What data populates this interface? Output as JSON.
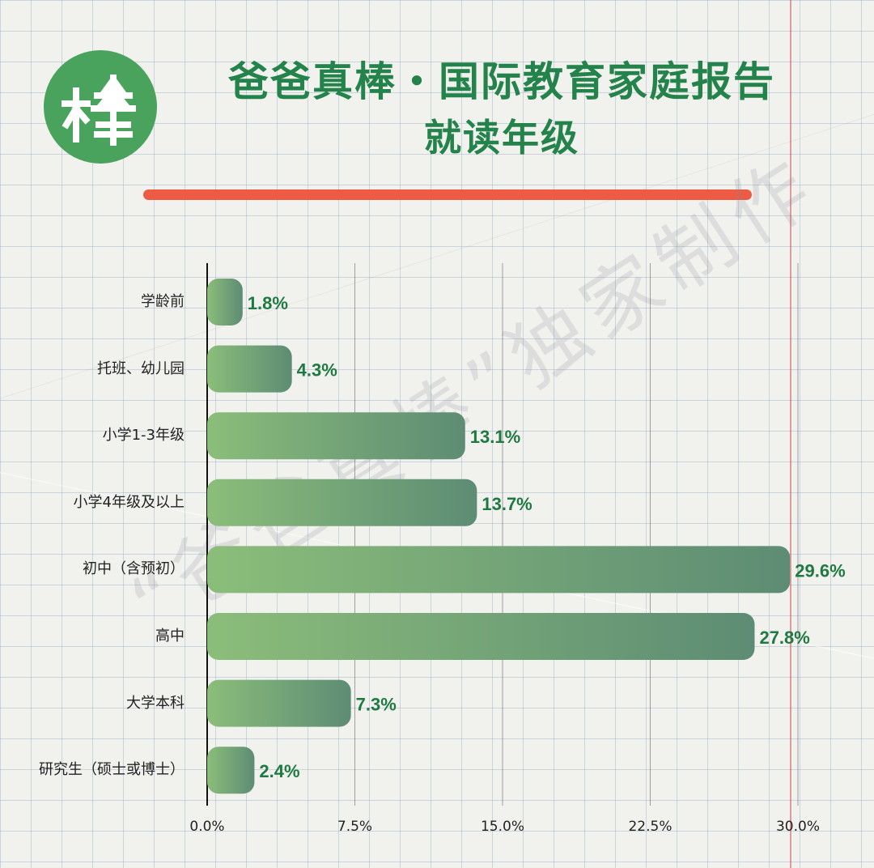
{
  "header": {
    "title_line1": "爸爸真棒・国际教育家庭报告",
    "title_line2": "就读年级"
  },
  "logo": {
    "text": "棒",
    "color": "#4aa35d"
  },
  "watermark": {
    "text": "“爸爸真棒”独家制作"
  },
  "colors": {
    "title": "#23834a",
    "accent_rule": "#ee5b45",
    "bar_start": "#8bbd7a",
    "bar_end": "#5d8c74",
    "value_label": "#1f7a42",
    "margin_line": "#d6505a"
  },
  "chart_data": {
    "type": "bar",
    "orientation": "horizontal",
    "categories": [
      "学龄前",
      "托班、幼儿园",
      "小学1-3年级",
      "小学4年级及以上",
      "初中（含预初）",
      "高中",
      "大学本科",
      "研究生（硕士或博士）"
    ],
    "values": [
      1.8,
      4.3,
      13.1,
      13.7,
      29.6,
      27.8,
      7.3,
      2.4
    ],
    "value_labels": [
      "1.8%",
      "4.3%",
      "13.1%",
      "13.7%",
      "29.6%",
      "27.8%",
      "7.3%",
      "2.4%"
    ],
    "title": "就读年级",
    "xlabel": "",
    "ylabel": "",
    "xlim": [
      0,
      30
    ],
    "xticks": [
      0,
      7.5,
      15,
      22.5,
      30
    ],
    "xtick_labels": [
      "0.0%",
      "7.5%",
      "15.0%",
      "22.5%",
      "30.0%"
    ],
    "grid": "vertical",
    "legend": "none"
  }
}
